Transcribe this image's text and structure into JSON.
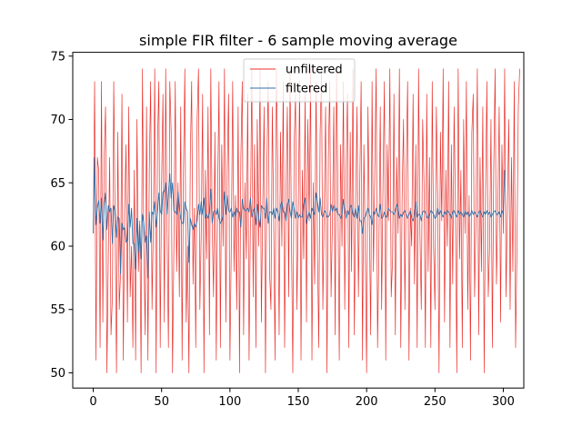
{
  "chart_data": {
    "type": "line",
    "title": "simple FIR filter - 6 sample moving average",
    "xlabel": "",
    "ylabel": "",
    "xlim": [
      -15,
      315
    ],
    "ylim": [
      48.8,
      75.3
    ],
    "xticks": [
      0,
      50,
      100,
      150,
      200,
      250,
      300
    ],
    "yticks": [
      50,
      55,
      60,
      65,
      70,
      75
    ],
    "grid": false,
    "legend_position": "top-center",
    "series": [
      {
        "name": "unfiltered",
        "color": "#e8322d",
        "style": "thin",
        "x_start": 0,
        "values": [
          61,
          73,
          51,
          67,
          66,
          52,
          73,
          54,
          67,
          71,
          50,
          59,
          67,
          53,
          56,
          73,
          62,
          50,
          69,
          55,
          58,
          72,
          51,
          63,
          68,
          54,
          71,
          56,
          60,
          52,
          66,
          51,
          70,
          58,
          62,
          50,
          74,
          60,
          53,
          71,
          51,
          66,
          73,
          55,
          62,
          74,
          50,
          68,
          73,
          52,
          65,
          72,
          54,
          74,
          61,
          52,
          73,
          69,
          50,
          60,
          73,
          58,
          65,
          56,
          71,
          51,
          66,
          74,
          54,
          60,
          50,
          67,
          73,
          57,
          63,
          52,
          70,
          74,
          55,
          61,
          72,
          50,
          66,
          59,
          71,
          53,
          74,
          62,
          56,
          69,
          51,
          64,
          73,
          52,
          68,
          60,
          74,
          54,
          66,
          72,
          51,
          60,
          73,
          58,
          64,
          55,
          71,
          50,
          67,
          73,
          53,
          65,
          59,
          72,
          51,
          62,
          74,
          56,
          68,
          52,
          70,
          60,
          74,
          54,
          63,
          71,
          50,
          66,
          73,
          58,
          55,
          71,
          62,
          51,
          74,
          66,
          53,
          69,
          60,
          73,
          52,
          64,
          71,
          56,
          74,
          61,
          50,
          68,
          72,
          55,
          63,
          73,
          51,
          66,
          59,
          72,
          54,
          70,
          62,
          74,
          51,
          65,
          57,
          73,
          60,
          52,
          69,
          74,
          55,
          63,
          71,
          50,
          67,
          73,
          56,
          62,
          71,
          53,
          74,
          64,
          51,
          68,
          60,
          73,
          55,
          66,
          72,
          52,
          69,
          58,
          74,
          53,
          63,
          71,
          56,
          65,
          73,
          51,
          68,
          60,
          50,
          71,
          62,
          53,
          73,
          58,
          66,
          74,
          52,
          60,
          71,
          55,
          65,
          73,
          51,
          68,
          62,
          74,
          56,
          59,
          72,
          53,
          67,
          61,
          74,
          52,
          64,
          70,
          55,
          66,
          73,
          51,
          63,
          60,
          72,
          57,
          68,
          52,
          74,
          61,
          55,
          70,
          65,
          52,
          72,
          58,
          67,
          52,
          73,
          60,
          55,
          71,
          64,
          50,
          69,
          62,
          74,
          54,
          66,
          60,
          73,
          52,
          68,
          57,
          71,
          63,
          50,
          74,
          59,
          66,
          52,
          70,
          61,
          73,
          55,
          64,
          51,
          69,
          72,
          56,
          62,
          74,
          53,
          67,
          58,
          71,
          50,
          64,
          73,
          56,
          60,
          70,
          52,
          66,
          74,
          57,
          63,
          71,
          54,
          68,
          61,
          74,
          56,
          63,
          70,
          55,
          67,
          58,
          73,
          52,
          60,
          71,
          74
        ]
      },
      {
        "name": "filtered",
        "color": "#2f6fa8",
        "style": "thin",
        "x_start": 0,
        "values": [
          61.0,
          67.0,
          61.7,
          63.0,
          63.6,
          61.8,
          63.8,
          60.5,
          63.3,
          64.2,
          61.3,
          63.2,
          62.7,
          63.0,
          60.2,
          63.2,
          62.8,
          60.7,
          62.3,
          62.2,
          57.8,
          61.8,
          61.3,
          61.5,
          60.3,
          60.5,
          63.3,
          61.5,
          63.0,
          60.2,
          60.2,
          58.2,
          62.2,
          59.5,
          61.7,
          59.0,
          62.5,
          61.8,
          60.3,
          60.8,
          57.5,
          62.7,
          60.3,
          62.7,
          62.5,
          63.5,
          61.5,
          62.7,
          64.2,
          62.8,
          62.5,
          64.3,
          64.3,
          65.0,
          62.5,
          64.2,
          65.7,
          63.8,
          65.0,
          62.8,
          62.7,
          62.5,
          64.3,
          63.0,
          62.2,
          61.8,
          61.8,
          63.5,
          63.0,
          62.7,
          58.7,
          62.2,
          61.7,
          61.3,
          61.8,
          61.5,
          62.0,
          63.3,
          62.5,
          63.5,
          62.5,
          63.8,
          62.2,
          62.5,
          62.2,
          62.7,
          64.5,
          61.8,
          62.7,
          62.8,
          62.5,
          63.0,
          62.2,
          61.8,
          62.0,
          62.5,
          64.3,
          62.5,
          64.0,
          62.8,
          62.7,
          63.0,
          62.3,
          62.7,
          62.3,
          63.0,
          62.7,
          62.7,
          61.5,
          63.7,
          63.0,
          62.8,
          62.8,
          63.0,
          62.7,
          63.8,
          62.3,
          62.8,
          63.0,
          61.7,
          63.3,
          62.3,
          61.5,
          63.2,
          63.0,
          63.0,
          62.2,
          63.8,
          61.8,
          62.7,
          62.7,
          62.5,
          63.0,
          62.2,
          63.0,
          62.7,
          62.0,
          63.2,
          63.5,
          62.7,
          62.7,
          62.0,
          63.3,
          63.7,
          62.7,
          62.2,
          63.5,
          63.0,
          62.2,
          62.7,
          62.2,
          62.5,
          62.3,
          62.3,
          63.3,
          63.8,
          61.8,
          62.3,
          62.7,
          62.2,
          63.0,
          62.7,
          62.5,
          64.2,
          63.5,
          62.7,
          63.8,
          62.5,
          62.3,
          62.8,
          62.7,
          62.3,
          62.3,
          62.5,
          63.3,
          62.7,
          63.2,
          62.8,
          63.0,
          62.5,
          62.5,
          62.2,
          62.5,
          63.7,
          62.8,
          62.2,
          62.8,
          62.5,
          63.2,
          63.2,
          62.5,
          62.3,
          63.0,
          62.2,
          63.2,
          62.0,
          62.0,
          61.0,
          62.2,
          62.3,
          62.7,
          63.0,
          62.5,
          62.3,
          61.7,
          62.7,
          62.5,
          63.0,
          62.5,
          62.3,
          63.3,
          62.2,
          62.3,
          62.7,
          62.3,
          62.3,
          63.0,
          62.8,
          62.7,
          62.7,
          62.5,
          62.8,
          63.3,
          63.0,
          62.2,
          62.5,
          62.3,
          62.7,
          62.8,
          62.5,
          62.2,
          62.5,
          62.8,
          62.2,
          62.0,
          62.5,
          63.5,
          62.3,
          62.5,
          62.5,
          62.0,
          62.7,
          62.8,
          62.7,
          62.3,
          62.2,
          62.5,
          62.8,
          62.7,
          62.5,
          62.2,
          62.3,
          63.0,
          62.5,
          62.8,
          62.5,
          62.3,
          62.7,
          62.5,
          62.8,
          62.7,
          62.5,
          62.2,
          62.7,
          62.8,
          62.5,
          62.3,
          62.8,
          62.5,
          62.7,
          62.5,
          62.3,
          62.8,
          62.5,
          62.7,
          62.3,
          62.5,
          62.8,
          62.5,
          62.7,
          62.5,
          62.3,
          62.7,
          62.8,
          62.5,
          62.3,
          62.7,
          62.5,
          62.8,
          62.5,
          62.7,
          62.3,
          62.5,
          62.7,
          62.8,
          62.5,
          62.5,
          62.7,
          62.3,
          62.8,
          62.5,
          66.0
        ]
      }
    ]
  }
}
